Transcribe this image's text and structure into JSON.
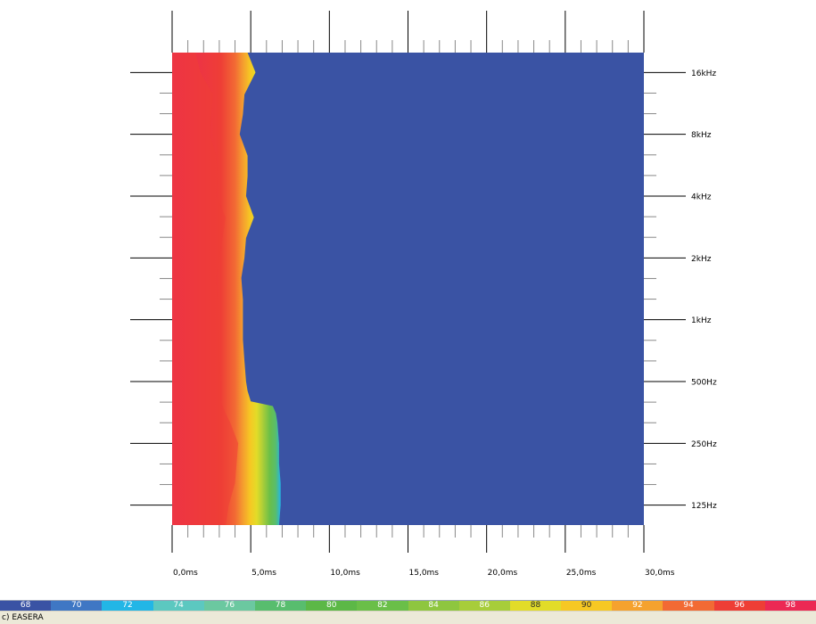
{
  "chart_data": {
    "type": "heatmap",
    "title": "",
    "xlabel": "",
    "ylabel": "",
    "x_ticks": [
      "0,0ms",
      "5,0ms",
      "10,0ms",
      "15,0ms",
      "20,0ms",
      "25,0ms",
      "30,0ms"
    ],
    "x_range_ms": [
      0,
      30
    ],
    "y_ticks": [
      "125Hz",
      "250Hz",
      "500Hz",
      "1kHz",
      "2kHz",
      "4kHz",
      "8kHz",
      "16kHz"
    ],
    "y_range_hz": [
      100,
      20000
    ],
    "y_scale": "log",
    "grid": false,
    "background_level": 68,
    "energy_front": {
      "frequency_hz": [
        100,
        125,
        160,
        200,
        250,
        315,
        350,
        380,
        400,
        450,
        500,
        630,
        800,
        1000,
        1250,
        1600,
        2000,
        2500,
        3150,
        4000,
        5000,
        6300,
        8000,
        10000,
        12500,
        16000,
        20000
      ],
      "red_end_ms": [
        3.4,
        3.6,
        4.0,
        4.1,
        4.2,
        3.7,
        3.4,
        3.2,
        3.1,
        3.1,
        3.1,
        3.0,
        3.0,
        2.9,
        2.9,
        2.8,
        3.0,
        3.2,
        3.4,
        2.8,
        2.9,
        2.8,
        2.4,
        2.5,
        2.6,
        1.8,
        1.5
      ],
      "green_end_ms": [
        6.8,
        6.9,
        6.9,
        6.8,
        6.8,
        6.7,
        6.6,
        6.4,
        5.0,
        4.8,
        4.7,
        4.6,
        4.5,
        4.5,
        4.5,
        4.4,
        4.6,
        4.7,
        5.2,
        4.7,
        4.8,
        4.8,
        4.3,
        4.5,
        4.6,
        5.3,
        4.8
      ]
    }
  },
  "legend": {
    "levels": [
      "68",
      "70",
      "72",
      "74",
      "76",
      "78",
      "80",
      "82",
      "84",
      "86",
      "88",
      "90",
      "92",
      "94",
      "96",
      "98"
    ],
    "colors": [
      "#3a53a4",
      "#3f77c4",
      "#22b6e6",
      "#5cc8c0",
      "#6bc8a0",
      "#58bd6e",
      "#5cb847",
      "#6abf48",
      "#8ec63f",
      "#a7cd3a",
      "#e2dc28",
      "#f6c823",
      "#f5a22e",
      "#f26a34",
      "#ee3e36",
      "#ec2954"
    ]
  },
  "status": {
    "text": "c) EASERA"
  }
}
